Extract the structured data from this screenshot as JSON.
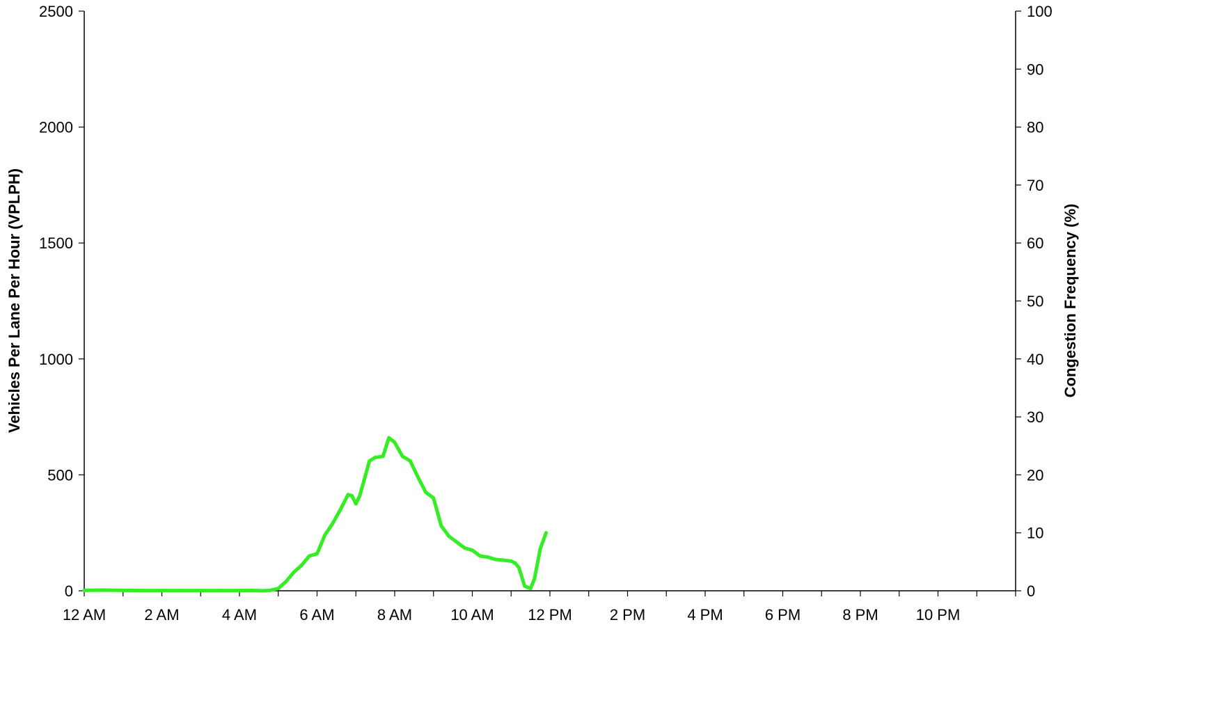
{
  "chart_data": {
    "type": "line",
    "ylabel": "Vehicles Per Lane Per Hour (VPLPH)",
    "y2label": "Congestion Frequency (%)",
    "xlim": [
      0,
      24
    ],
    "ylim": [
      0,
      2500
    ],
    "y2lim": [
      0,
      100
    ],
    "x_ticks": [
      {
        "hour": 0,
        "label": "12 AM"
      },
      {
        "hour": 2,
        "label": "2 AM"
      },
      {
        "hour": 4,
        "label": "4 AM"
      },
      {
        "hour": 6,
        "label": "6 AM"
      },
      {
        "hour": 8,
        "label": "8 AM"
      },
      {
        "hour": 10,
        "label": "10 AM"
      },
      {
        "hour": 12,
        "label": "12 PM"
      },
      {
        "hour": 14,
        "label": "2 PM"
      },
      {
        "hour": 16,
        "label": "4 PM"
      },
      {
        "hour": 18,
        "label": "6 PM"
      },
      {
        "hour": 20,
        "label": "8 PM"
      },
      {
        "hour": 22,
        "label": "10 PM"
      }
    ],
    "y_ticks": [
      "0",
      "500",
      "1000",
      "1500",
      "2000",
      "2500"
    ],
    "y_tick_values": [
      0,
      500,
      1000,
      1500,
      2000,
      2500
    ],
    "y2_ticks": [
      "0",
      "10",
      "20",
      "30",
      "40",
      "50",
      "60",
      "70",
      "80",
      "90",
      "100"
    ],
    "y2_tick_values": [
      0,
      10,
      20,
      30,
      40,
      50,
      60,
      70,
      80,
      90,
      100
    ],
    "grid": false,
    "series": [
      {
        "color": "#33ee22",
        "axis": "left",
        "x": [
          0,
          0.5,
          1.0,
          1.5,
          2.0,
          2.5,
          3.0,
          3.5,
          4.0,
          4.3,
          4.6,
          4.8,
          5.0,
          5.2,
          5.4,
          5.6,
          5.8,
          6.0,
          6.2,
          6.4,
          6.6,
          6.8,
          6.9,
          7.0,
          7.1,
          7.2,
          7.35,
          7.5,
          7.7,
          7.85,
          8.0,
          8.2,
          8.4,
          8.6,
          8.8,
          9.0,
          9.2,
          9.4,
          9.6,
          9.8,
          10.0,
          10.2,
          10.4,
          10.6,
          10.8,
          11.0,
          11.1,
          11.2,
          11.35,
          11.5,
          11.6,
          11.75,
          11.9
        ],
        "values": [
          2,
          3,
          2,
          1,
          1,
          1,
          1,
          1,
          1,
          2,
          0,
          2,
          10,
          40,
          80,
          110,
          150,
          160,
          240,
          290,
          350,
          415,
          410,
          375,
          410,
          470,
          560,
          575,
          580,
          660,
          640,
          580,
          560,
          490,
          425,
          400,
          280,
          235,
          210,
          185,
          175,
          150,
          145,
          135,
          132,
          128,
          120,
          100,
          20,
          10,
          50,
          180,
          250
        ]
      }
    ]
  }
}
